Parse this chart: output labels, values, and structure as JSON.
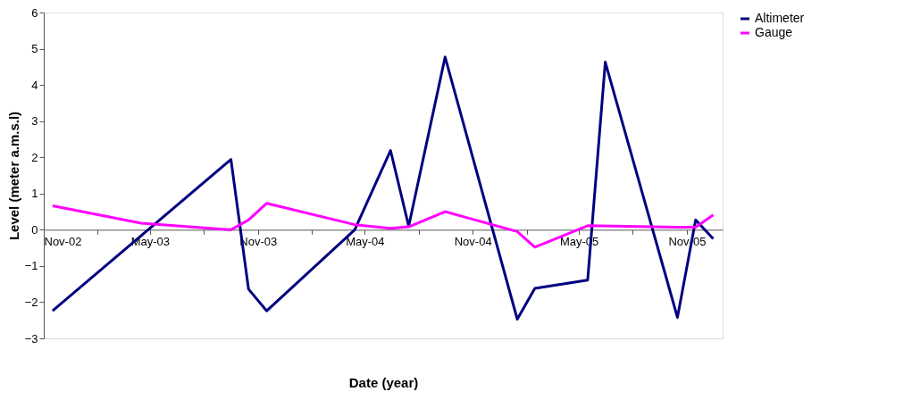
{
  "chart_data": {
    "type": "line",
    "xlabel": "Date (year)",
    "ylabel": "Level (meter a.m.s.l)",
    "x": [
      "2002-11-16",
      "2003-09-16",
      "2003-10-16",
      "2003-11-16",
      "2004-04-14",
      "2004-06-14",
      "2004-07-15",
      "2004-09-15",
      "2005-01-16",
      "2005-02-15",
      "2005-05-16",
      "2005-06-15",
      "2005-10-16",
      "2005-11-16",
      "2005-12-16"
    ],
    "series": [
      {
        "name": "Altimeter",
        "color": "#000080",
        "values": [
          -2.24,
          1.94,
          -1.64,
          -2.24,
          0.0,
          2.19,
          0.1,
          4.77,
          -2.47,
          -1.62,
          -1.39,
          4.63,
          -2.42,
          0.27,
          -0.25
        ]
      },
      {
        "name": "Gauge",
        "color": "#ff00ff",
        "x": [
          "2002-11-16",
          "2003-04-16",
          "2003-09-16",
          "2003-10-16",
          "2003-11-16",
          "2004-04-14",
          "2004-06-14",
          "2004-07-15",
          "2004-09-15",
          "2005-01-16",
          "2005-02-15",
          "2005-05-16",
          "2005-10-16",
          "2005-11-16",
          "2005-12-16"
        ],
        "values": [
          0.66,
          0.18,
          0.0,
          0.27,
          0.73,
          0.14,
          0.04,
          0.08,
          0.5,
          -0.05,
          -0.48,
          0.11,
          0.07,
          0.07,
          0.41
        ]
      }
    ],
    "xlim": [
      "2002-11-01",
      "2006-01-01"
    ],
    "xticks": [
      {
        "value": "2002-11-01",
        "label": "Nov-02"
      },
      {
        "value": "2003-02-01",
        "label": null
      },
      {
        "value": "2003-05-01",
        "label": "May-03"
      },
      {
        "value": "2003-08-01",
        "label": null
      },
      {
        "value": "2003-11-01",
        "label": "Nov-03"
      },
      {
        "value": "2004-02-01",
        "label": null
      },
      {
        "value": "2004-05-01",
        "label": "May-04"
      },
      {
        "value": "2004-08-01",
        "label": null
      },
      {
        "value": "2004-11-01",
        "label": "Nov-04"
      },
      {
        "value": "2005-02-01",
        "label": null
      },
      {
        "value": "2005-05-01",
        "label": "May-05"
      },
      {
        "value": "2005-08-01",
        "label": null
      },
      {
        "value": "2005-11-01",
        "label": "Nov-05"
      }
    ],
    "ylim": [
      -3,
      6
    ],
    "yticks": [
      -3,
      -2,
      -1,
      0,
      1,
      2,
      3,
      4,
      5,
      6
    ],
    "grid": false,
    "legend": "right",
    "marker": "none",
    "line_style": "solid"
  }
}
